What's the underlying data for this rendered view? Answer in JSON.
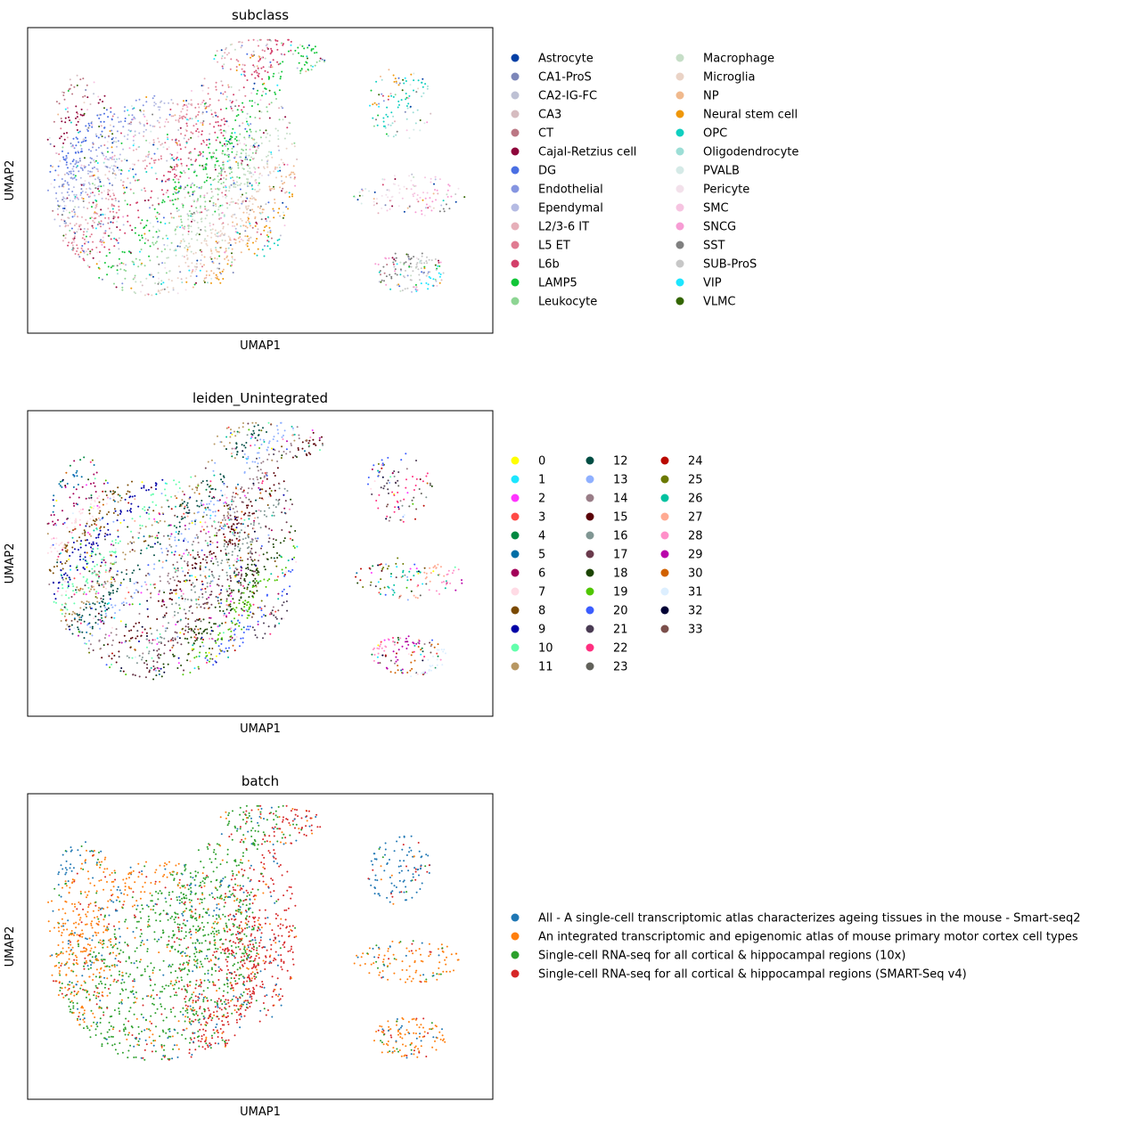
{
  "chart_data": [
    {
      "type": "scatter",
      "title": "subclass",
      "xlabel": "UMAP1",
      "ylabel": "UMAP2",
      "grid": false,
      "ticks": false,
      "legend_position": "right",
      "legend_columns": 2,
      "series": [
        {
          "name": "Astrocyte",
          "color": "#023fa5"
        },
        {
          "name": "CA1-ProS",
          "color": "#7d87b9"
        },
        {
          "name": "CA2-IG-FC",
          "color": "#bec1d4"
        },
        {
          "name": "CA3",
          "color": "#d6bcc0"
        },
        {
          "name": "CT",
          "color": "#bb7784"
        },
        {
          "name": "Cajal-Retzius cell",
          "color": "#8e063b"
        },
        {
          "name": "DG",
          "color": "#4a6fe3"
        },
        {
          "name": "Endothelial",
          "color": "#8595e1"
        },
        {
          "name": "Ependymal",
          "color": "#b5bbe3"
        },
        {
          "name": "L2/3-6 IT",
          "color": "#e6afb9"
        },
        {
          "name": "L5 ET",
          "color": "#e07b91"
        },
        {
          "name": "L6b",
          "color": "#d33f6a"
        },
        {
          "name": "LAMP5",
          "color": "#11c638"
        },
        {
          "name": "Leukocyte",
          "color": "#8dd593"
        },
        {
          "name": "Macrophage",
          "color": "#c6dec7"
        },
        {
          "name": "Microglia",
          "color": "#ead3c6"
        },
        {
          "name": "NP",
          "color": "#f0b98d"
        },
        {
          "name": "Neural stem cell",
          "color": "#ef9708"
        },
        {
          "name": "OPC",
          "color": "#0fcfc0"
        },
        {
          "name": "Oligodendrocyte",
          "color": "#9cded6"
        },
        {
          "name": "PVALB",
          "color": "#d5eae7"
        },
        {
          "name": "Pericyte",
          "color": "#f3e1eb"
        },
        {
          "name": "SMC",
          "color": "#f6c4e1"
        },
        {
          "name": "SNCG",
          "color": "#f79cd4"
        },
        {
          "name": "SST",
          "color": "#7f7f7f"
        },
        {
          "name": "SUB-ProS",
          "color": "#c7c7c7"
        },
        {
          "name": "VIP",
          "color": "#1ce6ff"
        },
        {
          "name": "VLMC",
          "color": "#336600"
        }
      ]
    },
    {
      "type": "scatter",
      "title": "leiden_Unintegrated",
      "xlabel": "UMAP1",
      "ylabel": "UMAP2",
      "grid": false,
      "ticks": false,
      "legend_position": "right",
      "legend_columns": 3,
      "series": [
        {
          "name": "0",
          "color": "#ffff00"
        },
        {
          "name": "1",
          "color": "#1ce6ff"
        },
        {
          "name": "2",
          "color": "#ff34ff"
        },
        {
          "name": "3",
          "color": "#ff4a46"
        },
        {
          "name": "4",
          "color": "#008941"
        },
        {
          "name": "5",
          "color": "#006fa6"
        },
        {
          "name": "6",
          "color": "#a30059"
        },
        {
          "name": "7",
          "color": "#ffdbe5"
        },
        {
          "name": "8",
          "color": "#7a4900"
        },
        {
          "name": "9",
          "color": "#0000a6"
        },
        {
          "name": "10",
          "color": "#63ffac"
        },
        {
          "name": "11",
          "color": "#b79762"
        },
        {
          "name": "12",
          "color": "#004d43"
        },
        {
          "name": "13",
          "color": "#8fb0ff"
        },
        {
          "name": "14",
          "color": "#997d87"
        },
        {
          "name": "15",
          "color": "#5a0007"
        },
        {
          "name": "16",
          "color": "#809693"
        },
        {
          "name": "17",
          "color": "#6a3a4c"
        },
        {
          "name": "18",
          "color": "#1b4400"
        },
        {
          "name": "19",
          "color": "#4fc601"
        },
        {
          "name": "20",
          "color": "#3b5dff"
        },
        {
          "name": "21",
          "color": "#4a3b53"
        },
        {
          "name": "22",
          "color": "#ff2f80"
        },
        {
          "name": "23",
          "color": "#61615a"
        },
        {
          "name": "24",
          "color": "#ba0900"
        },
        {
          "name": "25",
          "color": "#6b7900"
        },
        {
          "name": "26",
          "color": "#00c2a0"
        },
        {
          "name": "27",
          "color": "#ffaa92"
        },
        {
          "name": "28",
          "color": "#ff90c9"
        },
        {
          "name": "29",
          "color": "#b903aa"
        },
        {
          "name": "30",
          "color": "#d16100"
        },
        {
          "name": "31",
          "color": "#ddefff"
        },
        {
          "name": "32",
          "color": "#000035"
        },
        {
          "name": "33",
          "color": "#7b4f4b"
        }
      ]
    },
    {
      "type": "scatter",
      "title": "batch",
      "xlabel": "UMAP1",
      "ylabel": "UMAP2",
      "grid": false,
      "ticks": false,
      "legend_position": "right",
      "legend_columns": 1,
      "series": [
        {
          "name": "All - A single-cell transcriptomic atlas characterizes ageing tissues in the mouse - Smart-seq2",
          "color": "#1f77b4"
        },
        {
          "name": "An integrated transcriptomic and epigenomic atlas of mouse primary motor cortex cell types",
          "color": "#ff7f0e"
        },
        {
          "name": "Single-cell RNA-seq for all cortical & hippocampal regions (10x)",
          "color": "#2ca02c"
        },
        {
          "name": "Single-cell RNA-seq for all cortical & hippocampal regions (SMART-Seq v4)",
          "color": "#d62728"
        }
      ]
    }
  ]
}
